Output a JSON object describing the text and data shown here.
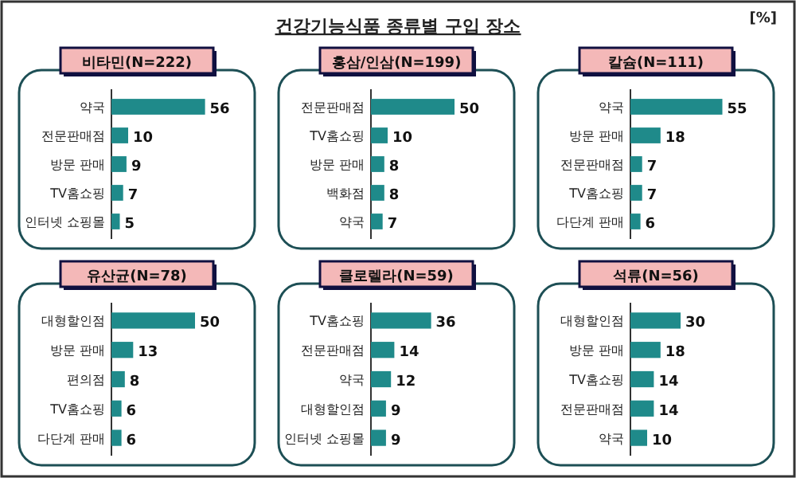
{
  "chart_data": [
    {
      "type": "other",
      "title": "건강기능식품 종류별 구입 장소",
      "annotations": [
        "[%]"
      ]
    },
    {
      "type": "bar",
      "orientation": "horizontal",
      "title": "비타민(N=222)",
      "categories": [
        "약국",
        "전문판매점",
        "방문 판매",
        "TV홈쇼핑",
        "인터넷 쇼핑몰"
      ],
      "values": [
        56,
        10,
        9,
        7,
        5
      ],
      "color": "#1f8a8a",
      "data_labels": true
    },
    {
      "type": "bar",
      "orientation": "horizontal",
      "title": "홍삼/인삼(N=199)",
      "categories": [
        "전문판매점",
        "TV홈쇼핑",
        "방문 판매",
        "백화점",
        "약국"
      ],
      "values": [
        50,
        10,
        8,
        8,
        7
      ],
      "color": "#1f8a8a",
      "data_labels": true
    },
    {
      "type": "bar",
      "orientation": "horizontal",
      "title": "칼슘(N=111)",
      "categories": [
        "약국",
        "방문 판매",
        "전문판매점",
        "TV홈쇼핑",
        "다단계 판매"
      ],
      "values": [
        55,
        18,
        7,
        7,
        6
      ],
      "color": "#1f8a8a",
      "data_labels": true
    },
    {
      "type": "bar",
      "orientation": "horizontal",
      "title": "유산균(N=78)",
      "categories": [
        "대형할인점",
        "방문 판매",
        "편의점",
        "TV홈쇼핑",
        "다단계 판매"
      ],
      "values": [
        50,
        13,
        8,
        6,
        6
      ],
      "color": "#1f8a8a",
      "data_labels": true
    },
    {
      "type": "bar",
      "orientation": "horizontal",
      "title": "클로렐라(N=59)",
      "categories": [
        "TV홈쇼핑",
        "전문판매점",
        "약국",
        "대형할인점",
        "인터넷 쇼핑몰"
      ],
      "values": [
        36,
        14,
        12,
        9,
        9
      ],
      "color": "#1f8a8a",
      "data_labels": true
    },
    {
      "type": "bar",
      "orientation": "horizontal",
      "title": "석류(N=56)",
      "categories": [
        "대형할인점",
        "방문 판매",
        "TV홈쇼핑",
        "전문판매점",
        "약국"
      ],
      "values": [
        30,
        18,
        14,
        14,
        10
      ],
      "color": "#1f8a8a",
      "data_labels": true
    }
  ]
}
